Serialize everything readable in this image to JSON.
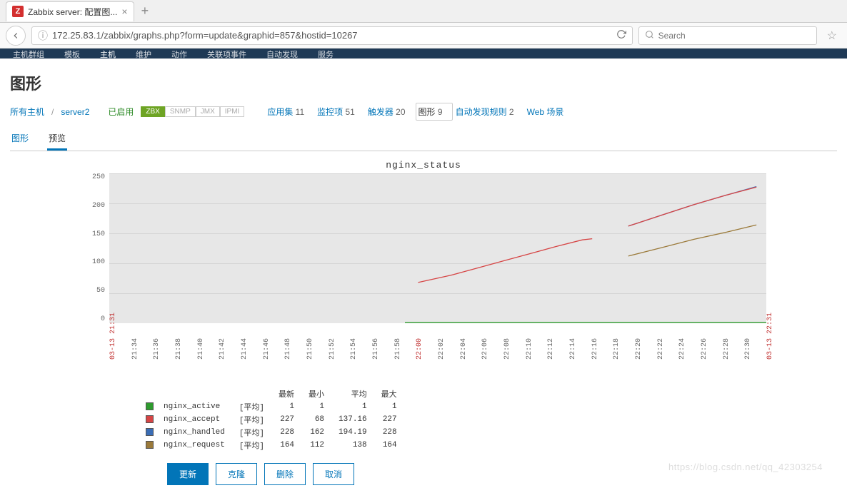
{
  "browser": {
    "tab_favicon_letter": "Z",
    "tab_title": "Zabbix server: 配置图...",
    "url": "172.25.83.1/zabbix/graphs.php?form=update&graphid=857&hostid=10267",
    "search_placeholder": "Search"
  },
  "zbx_nav": [
    "主机群组",
    "模板",
    "主机",
    "维护",
    "动作",
    "关联项事件",
    "自动发现",
    "服务"
  ],
  "zbx_nav_active_index": 2,
  "page_title": "图形",
  "breadcrumb": {
    "all_hosts": "所有主机",
    "host": "server2",
    "status": "已启用",
    "badges": [
      "ZBX",
      "SNMP",
      "JMX",
      "IPMI"
    ]
  },
  "host_tabs": [
    {
      "label": "应用集",
      "count": "11"
    },
    {
      "label": "监控项",
      "count": "51"
    },
    {
      "label": "触发器",
      "count": "20"
    },
    {
      "label": "图形",
      "count": "9",
      "selected": true
    },
    {
      "label": "自动发现规则",
      "count": "2"
    },
    {
      "label": "Web 场景",
      "count": ""
    }
  ],
  "tabs": [
    {
      "label": "图形",
      "active": false
    },
    {
      "label": "预览",
      "active": true
    }
  ],
  "chart": {
    "title": "nginx_status",
    "background_color": "#e7e7e7",
    "grid_color": "#d5d5d5",
    "ylim": [
      0,
      250
    ],
    "yticks": [
      250,
      200,
      150,
      100,
      50,
      0
    ],
    "x_start_label": "03-13 21:31",
    "x_end_label": "03-13 22:31",
    "xticks": [
      "21:31",
      "21:34",
      "21:36",
      "21:38",
      "21:40",
      "21:42",
      "21:44",
      "21:46",
      "21:48",
      "21:50",
      "21:52",
      "21:54",
      "21:56",
      "21:58",
      "22:00",
      "22:02",
      "22:04",
      "22:06",
      "22:08",
      "22:10",
      "22:12",
      "22:14",
      "22:16",
      "22:18",
      "22:20",
      "22:22",
      "22:24",
      "22:26",
      "22:28",
      "22:30",
      "22:31"
    ],
    "x_red_indices": [
      0,
      14,
      30
    ],
    "series": [
      {
        "name": "nginx_active",
        "color": "#2e9b2e",
        "type": "平均",
        "latest": "1",
        "min": "1",
        "avg": "1",
        "max": "1",
        "points": [
          [
            0.45,
            1
          ],
          [
            1.0,
            1
          ]
        ]
      },
      {
        "name": "nginx_accept",
        "color": "#d64545",
        "type": "平均",
        "latest": "227",
        "min": "68",
        "avg": "137.16",
        "max": "227",
        "points": [
          [
            0.47,
            68
          ],
          [
            0.52,
            80
          ],
          [
            0.56,
            92
          ],
          [
            0.6,
            104
          ],
          [
            0.64,
            116
          ],
          [
            0.68,
            128
          ],
          [
            0.72,
            139
          ],
          [
            0.735,
            141
          ]
        ]
      },
      {
        "name": "nginx_handled",
        "color": "#3a6db5",
        "type": "平均",
        "latest": "228",
        "min": "162",
        "avg": "194.19",
        "max": "228",
        "points": [
          [
            0.79,
            162
          ],
          [
            0.84,
            180
          ],
          [
            0.89,
            198
          ],
          [
            0.94,
            214
          ],
          [
            0.985,
            228
          ]
        ]
      },
      {
        "name": "nginx_request",
        "color": "#9b7a3a",
        "type": "平均",
        "latest": "164",
        "min": "112",
        "avg": "138",
        "max": "164",
        "points": [
          [
            0.79,
            112
          ],
          [
            0.84,
            126
          ],
          [
            0.89,
            140
          ],
          [
            0.94,
            152
          ],
          [
            0.985,
            164
          ]
        ]
      },
      {
        "name": "",
        "color": "#d64545",
        "type": "",
        "latest": "",
        "min": "",
        "avg": "",
        "max": "",
        "points": [
          [
            0.79,
            162
          ],
          [
            0.84,
            180
          ],
          [
            0.89,
            198
          ],
          [
            0.94,
            214
          ],
          [
            0.985,
            227
          ]
        ],
        "hidden_in_legend": true
      }
    ],
    "legend_headers": [
      "最新",
      "最小",
      "平均",
      "最大"
    ]
  },
  "buttons": {
    "update": "更新",
    "clone": "克隆",
    "delete": "删除",
    "cancel": "取消"
  },
  "watermark": "https://blog.csdn.net/qq_42303254"
}
